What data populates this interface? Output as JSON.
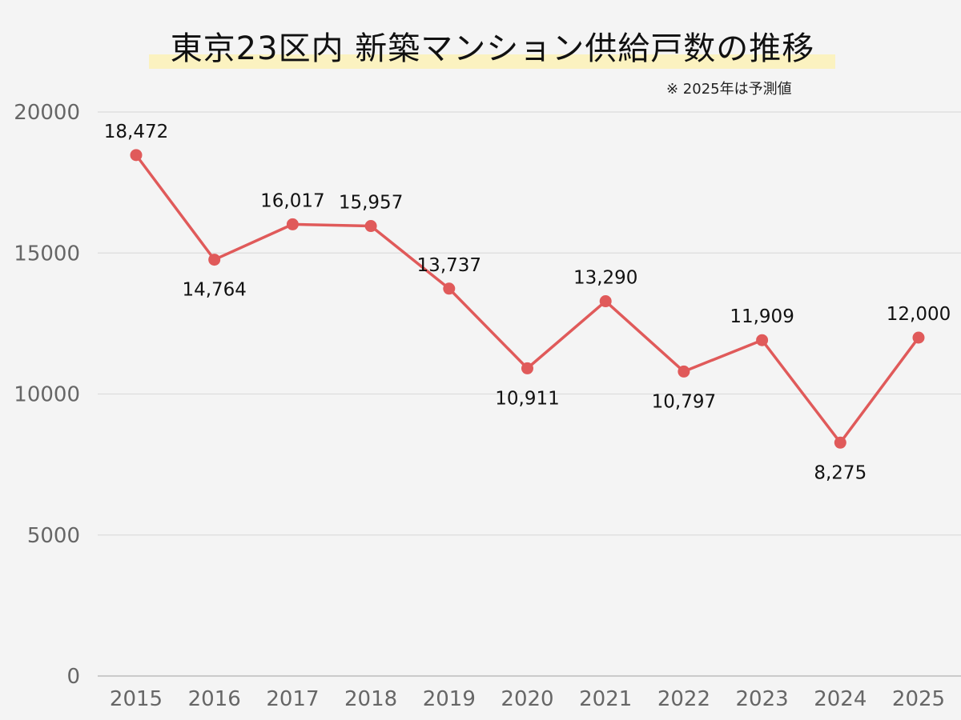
{
  "title": "東京23区内 新築マンション供給戸数の推移",
  "note": "※ 2025年は予測値",
  "colors": {
    "line": "#e05a5a",
    "title_highlight": "#fbf2c0",
    "grid": "#dcdcdc",
    "background": "#f4f4f4"
  },
  "chart_data": {
    "type": "line",
    "title": "東京23区内 新築マンション供給戸数の推移",
    "xlabel": "",
    "ylabel": "",
    "categories": [
      "2015",
      "2016",
      "2017",
      "2018",
      "2019",
      "2020",
      "2021",
      "2022",
      "2023",
      "2024",
      "2025"
    ],
    "series": [
      {
        "values": [
          18472,
          14764,
          16017,
          15957,
          13737,
          10911,
          13290,
          10797,
          11909,
          8275,
          12000
        ]
      }
    ],
    "data_labels": [
      "18,472",
      "14,764",
      "16,017",
      "15,957",
      "13,737",
      "10,911",
      "13,290",
      "10,797",
      "11,909",
      "8,275",
      "12,000"
    ],
    "label_positions": [
      "above",
      "below",
      "above",
      "above",
      "above",
      "below",
      "above",
      "below",
      "above",
      "below",
      "above"
    ],
    "yticks": [
      "0",
      "5000",
      "10000",
      "15000",
      "20000"
    ],
    "ylim": [
      0,
      20000
    ],
    "grid": true,
    "legend": "none"
  }
}
